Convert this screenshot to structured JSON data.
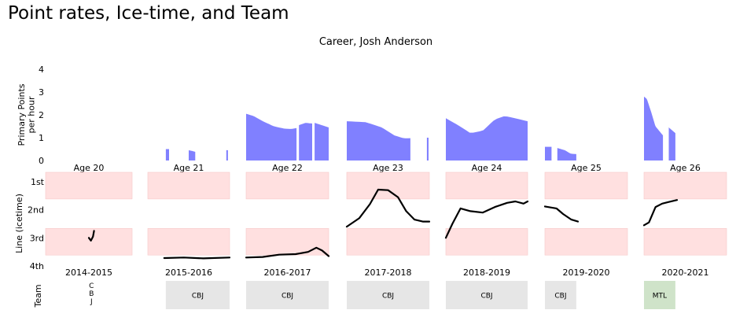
{
  "header": {
    "title": "Point rates, Ice-time, and Team"
  },
  "chart_data": {
    "type": "area",
    "title": "Career, Josh Anderson",
    "colors": {
      "area": "#8080ff",
      "line": "#000000",
      "band": "#ffe0e0",
      "team_box": "#e6e6e6",
      "team_box_current": "#cfe3c9"
    },
    "rates_panel": {
      "ylabel": [
        "Primary Points",
        "per hour"
      ],
      "yticks": [
        0,
        1,
        2,
        3,
        4
      ],
      "ylim": [
        0,
        4
      ]
    },
    "line_panel": {
      "ylabel": "Line (icetime)",
      "ytick_labels": [
        "1st",
        "2nd",
        "3rd",
        "4th"
      ],
      "ylim": [
        4,
        1
      ]
    },
    "team_panel": {
      "ylabel": "Team"
    },
    "seasons": [
      {
        "age": "Age 20",
        "season": "2014-2015",
        "team": "CBJ",
        "team_vertical": true,
        "team_current": false,
        "rates": [],
        "line": [
          [
            0.0,
            3.0
          ],
          [
            0.4,
            3.1
          ],
          [
            0.8,
            2.95
          ],
          [
            1.0,
            2.75
          ]
        ]
      },
      {
        "age": "Age 21",
        "season": "2015-2016",
        "team": "CBJ",
        "team_vertical": false,
        "team_current": false,
        "rates": [
          [
            [
              0.0,
              0.5
            ],
            [
              1.0,
              0.5
            ]
          ],
          [
            [
              0.0,
              0.45
            ],
            [
              0.5,
              0.42
            ],
            [
              1.0,
              0.38
            ]
          ],
          [
            [
              0.0,
              0.45
            ],
            [
              1.0,
              0.45
            ]
          ]
        ],
        "line": [
          [
            0.0,
            3.72
          ],
          [
            0.3,
            3.7
          ],
          [
            0.6,
            3.73
          ],
          [
            1.0,
            3.7
          ]
        ]
      },
      {
        "age": "Age 22",
        "season": "2016-2017",
        "team": "CBJ",
        "team_vertical": false,
        "team_current": false,
        "rates": [
          [
            [
              0.0,
              2.05
            ],
            [
              0.15,
              1.95
            ],
            [
              0.35,
              1.7
            ],
            [
              0.55,
              1.5
            ],
            [
              0.75,
              1.4
            ],
            [
              0.9,
              1.38
            ],
            [
              1.0,
              1.42
            ]
          ],
          [
            [
              0.0,
              1.55
            ],
            [
              0.5,
              1.65
            ],
            [
              1.0,
              1.62
            ]
          ],
          [
            [
              0.0,
              1.65
            ],
            [
              0.5,
              1.55
            ],
            [
              1.0,
              1.45
            ]
          ]
        ],
        "line": [
          [
            0.0,
            3.7
          ],
          [
            0.2,
            3.68
          ],
          [
            0.4,
            3.6
          ],
          [
            0.6,
            3.58
          ],
          [
            0.75,
            3.5
          ],
          [
            0.85,
            3.35
          ],
          [
            0.92,
            3.45
          ],
          [
            1.0,
            3.65
          ]
        ]
      },
      {
        "age": "Age 23",
        "season": "2017-2018",
        "team": "CBJ",
        "team_vertical": false,
        "team_current": false,
        "rates": [
          [
            [
              0.0,
              1.72
            ],
            [
              0.3,
              1.68
            ],
            [
              0.55,
              1.45
            ],
            [
              0.75,
              1.1
            ],
            [
              0.9,
              0.97
            ],
            [
              1.0,
              0.98
            ]
          ],
          [
            [
              0.0,
              1.0
            ],
            [
              1.0,
              1.0
            ]
          ]
        ],
        "line": [
          [
            0.0,
            2.6
          ],
          [
            0.15,
            2.3
          ],
          [
            0.28,
            1.8
          ],
          [
            0.38,
            1.28
          ],
          [
            0.5,
            1.3
          ],
          [
            0.62,
            1.55
          ],
          [
            0.72,
            2.05
          ],
          [
            0.82,
            2.35
          ],
          [
            0.92,
            2.42
          ],
          [
            1.0,
            2.42
          ]
        ]
      },
      {
        "age": "Age 24",
        "season": "2018-2019",
        "team": "CBJ",
        "team_vertical": false,
        "team_current": false,
        "rates": [
          [
            [
              0.0,
              1.85
            ],
            [
              0.15,
              1.55
            ],
            [
              0.3,
              1.2
            ],
            [
              0.45,
              1.3
            ],
            [
              0.6,
              1.8
            ],
            [
              0.72,
              1.95
            ],
            [
              0.85,
              1.85
            ],
            [
              1.0,
              1.72
            ]
          ]
        ],
        "line": [
          [
            0.0,
            3.0
          ],
          [
            0.08,
            2.5
          ],
          [
            0.18,
            1.95
          ],
          [
            0.3,
            2.05
          ],
          [
            0.45,
            2.1
          ],
          [
            0.6,
            1.9
          ],
          [
            0.75,
            1.75
          ],
          [
            0.85,
            1.7
          ],
          [
            0.95,
            1.78
          ],
          [
            1.0,
            1.7
          ]
        ]
      },
      {
        "age": "Age 25",
        "season": "2019-2020",
        "team": "CBJ",
        "team_vertical": false,
        "team_current": false,
        "rates": [
          [
            [
              0.0,
              0.6
            ],
            [
              1.0,
              0.6
            ]
          ],
          [
            [
              0.0,
              0.55
            ],
            [
              0.4,
              0.45
            ],
            [
              0.7,
              0.3
            ],
            [
              1.0,
              0.28
            ]
          ]
        ],
        "line": [
          [
            0.0,
            1.88
          ],
          [
            0.35,
            1.95
          ],
          [
            0.55,
            2.15
          ],
          [
            0.8,
            2.35
          ],
          [
            1.0,
            2.42
          ]
        ]
      },
      {
        "age": "Age 26",
        "season": "2020-2021",
        "team": "MTL",
        "team_vertical": false,
        "team_current": true,
        "rates": [
          [
            [
              0.0,
              2.8
            ],
            [
              0.15,
              2.7
            ],
            [
              0.35,
              2.2
            ],
            [
              0.6,
              1.5
            ],
            [
              0.85,
              1.25
            ],
            [
              1.0,
              1.1
            ]
          ],
          [
            [
              0.0,
              1.45
            ],
            [
              0.6,
              1.3
            ],
            [
              1.0,
              1.2
            ]
          ]
        ],
        "line": [
          [
            0.0,
            2.55
          ],
          [
            0.15,
            2.45
          ],
          [
            0.35,
            1.9
          ],
          [
            0.55,
            1.78
          ],
          [
            0.75,
            1.72
          ],
          [
            1.0,
            1.65
          ]
        ]
      }
    ]
  }
}
